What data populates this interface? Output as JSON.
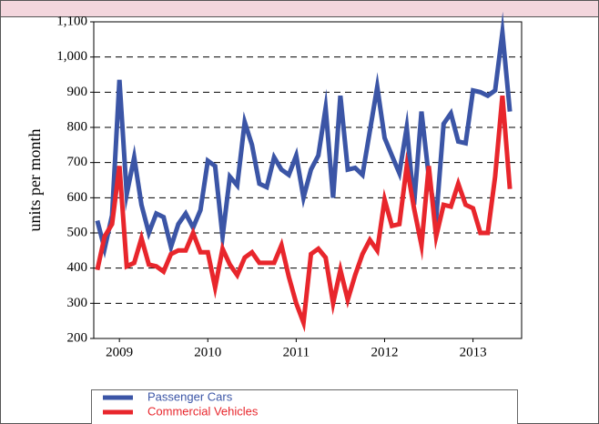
{
  "chart_data": {
    "type": "line",
    "y_label": "units per month",
    "x": [
      2008.75,
      2008.833,
      2008.917,
      2009,
      2009.083,
      2009.167,
      2009.25,
      2009.333,
      2009.417,
      2009.5,
      2009.583,
      2009.667,
      2009.75,
      2009.833,
      2009.917,
      2010,
      2010.083,
      2010.167,
      2010.25,
      2010.333,
      2010.417,
      2010.5,
      2010.583,
      2010.667,
      2010.75,
      2010.833,
      2010.917,
      2011,
      2011.083,
      2011.167,
      2011.25,
      2011.333,
      2011.417,
      2011.5,
      2011.583,
      2011.667,
      2011.75,
      2011.833,
      2011.917,
      2012,
      2012.083,
      2012.167,
      2012.25,
      2012.333,
      2012.417,
      2012.5,
      2012.583,
      2012.667,
      2012.75,
      2012.833,
      2012.917,
      2013,
      2013.083,
      2013.167,
      2013.25,
      2013.333,
      2013.417
    ],
    "series": [
      {
        "name": "Passenger Cars",
        "color": "#3b55a6",
        "values": [
          535,
          455,
          550,
          935,
          610,
          715,
          580,
          500,
          555,
          545,
          460,
          525,
          555,
          515,
          565,
          705,
          690,
          490,
          660,
          635,
          815,
          750,
          640,
          630,
          715,
          680,
          665,
          720,
          600,
          680,
          720,
          855,
          600,
          890,
          680,
          685,
          665,
          790,
          915,
          770,
          720,
          670,
          800,
          580,
          845,
          660,
          540,
          810,
          840,
          760,
          755,
          905,
          900,
          890,
          905,
          1070,
          845
        ]
      },
      {
        "name": "Commercial Vehicles",
        "color": "#e8262c",
        "values": [
          395,
          490,
          525,
          690,
          405,
          415,
          485,
          410,
          405,
          390,
          440,
          450,
          450,
          500,
          445,
          445,
          345,
          455,
          410,
          380,
          430,
          445,
          415,
          415,
          415,
          465,
          375,
          300,
          245,
          440,
          455,
          430,
          300,
          395,
          310,
          380,
          440,
          480,
          450,
          595,
          520,
          525,
          690,
          570,
          465,
          690,
          490,
          580,
          575,
          640,
          580,
          570,
          500,
          500,
          660,
          890,
          625
        ]
      }
    ],
    "xlim": [
      2008.71,
      2013.55
    ],
    "xticks": [
      2009,
      2010,
      2011,
      2012,
      2013
    ],
    "ylim": [
      200,
      1100
    ],
    "yticks": [
      200,
      300,
      400,
      500,
      600,
      700,
      800,
      900,
      {
        "value": 1000,
        "label": "1,000"
      },
      {
        "value": 1100,
        "label": "1,100"
      }
    ],
    "grid": true,
    "legend": "bottom"
  }
}
